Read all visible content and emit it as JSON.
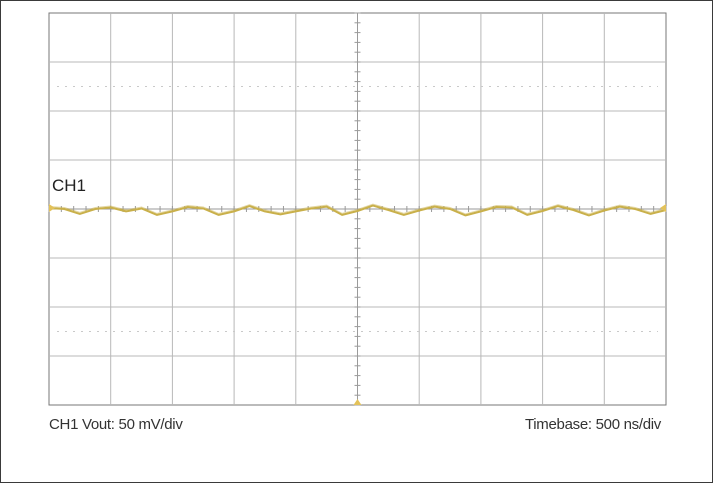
{
  "chart_data": {
    "type": "line",
    "title": "",
    "xlabel": "",
    "ylabel": "",
    "grid": true,
    "x_divisions": 10,
    "y_divisions": 8,
    "xlim": [
      0,
      10
    ],
    "ylim": [
      -4,
      4
    ],
    "x_units": "div",
    "y_units": "div",
    "series": [
      {
        "name": "CH1",
        "color": "#c9b04a",
        "x": [
          0,
          0.25,
          0.5,
          0.75,
          1.0,
          1.25,
          1.5,
          1.75,
          2.0,
          2.25,
          2.5,
          2.75,
          3.0,
          3.25,
          3.5,
          3.75,
          4.0,
          4.25,
          4.5,
          4.75,
          5.0,
          5.25,
          5.5,
          5.75,
          6.0,
          6.25,
          6.5,
          6.75,
          7.0,
          7.25,
          7.5,
          7.75,
          8.0,
          8.25,
          8.5,
          8.75,
          9.0,
          9.25,
          9.5,
          9.75,
          10.0
        ],
        "values": [
          0.02,
          0.0,
          -0.1,
          0.0,
          0.03,
          -0.05,
          0.01,
          -0.12,
          -0.05,
          0.04,
          0.01,
          -0.12,
          -0.05,
          0.06,
          -0.05,
          -0.11,
          -0.05,
          0.01,
          0.05,
          -0.12,
          -0.04,
          0.07,
          -0.02,
          -0.12,
          -0.03,
          0.05,
          0.0,
          -0.13,
          -0.05,
          0.04,
          0.03,
          -0.12,
          -0.04,
          0.06,
          -0.02,
          -0.13,
          -0.03,
          0.05,
          0.0,
          -0.1,
          -0.02
        ]
      }
    ]
  },
  "trace_label": "CH1",
  "channel_setting": "CH1 Vout: 50 mV/div",
  "timebase_setting": "Timebase: 500 ns/div",
  "colors": {
    "grid": "#b8b8b8",
    "grid_border": "#777777",
    "trace": "#c9b04a",
    "marker": "#e3c25a"
  }
}
